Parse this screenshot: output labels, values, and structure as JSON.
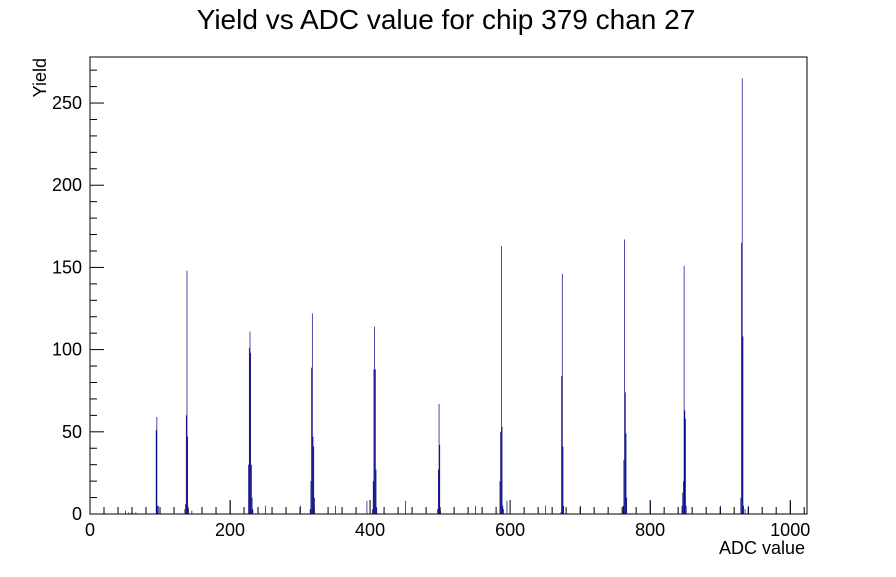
{
  "chart_data": {
    "type": "bar",
    "title": "Yield vs ADC value for chip 379 chan 27",
    "xlabel": "ADC value",
    "ylabel": "Yield",
    "xlim": [
      0,
      1024
    ],
    "ylim": [
      0,
      278
    ],
    "x_ticks": [
      0,
      200,
      400,
      600,
      800,
      1000
    ],
    "y_ticks": [
      0,
      50,
      100,
      150,
      200,
      250
    ],
    "grid": false,
    "legend": "none",
    "series_color": "#000080",
    "bins": [
      [
        50,
        2
      ],
      [
        55,
        1
      ],
      [
        60,
        1
      ],
      [
        65,
        1
      ],
      [
        94,
        51
      ],
      [
        95,
        59
      ],
      [
        96,
        5
      ],
      [
        97,
        5
      ],
      [
        135,
        3
      ],
      [
        136,
        6
      ],
      [
        137,
        60
      ],
      [
        138,
        148
      ],
      [
        139,
        47
      ],
      [
        140,
        3
      ],
      [
        145,
        2
      ],
      [
        200,
        8
      ],
      [
        226,
        30
      ],
      [
        227,
        101
      ],
      [
        228,
        111
      ],
      [
        229,
        98
      ],
      [
        230,
        30
      ],
      [
        231,
        10
      ],
      [
        232,
        3
      ],
      [
        250,
        5
      ],
      [
        300,
        5
      ],
      [
        314,
        3
      ],
      [
        315,
        20
      ],
      [
        316,
        89
      ],
      [
        317,
        122
      ],
      [
        318,
        47
      ],
      [
        319,
        41
      ],
      [
        320,
        10
      ],
      [
        350,
        5
      ],
      [
        395,
        8
      ],
      [
        403,
        3
      ],
      [
        404,
        20
      ],
      [
        405,
        88
      ],
      [
        406,
        114
      ],
      [
        407,
        88
      ],
      [
        408,
        27
      ],
      [
        409,
        4
      ],
      [
        450,
        8
      ],
      [
        496,
        3
      ],
      [
        497,
        27
      ],
      [
        498,
        67
      ],
      [
        499,
        42
      ],
      [
        500,
        2
      ],
      [
        550,
        5
      ],
      [
        585,
        20
      ],
      [
        586,
        50
      ],
      [
        587,
        163
      ],
      [
        588,
        53
      ],
      [
        589,
        5
      ],
      [
        590,
        3
      ],
      [
        595,
        8
      ],
      [
        650,
        5
      ],
      [
        672,
        1
      ],
      [
        673,
        84
      ],
      [
        674,
        146
      ],
      [
        675,
        41
      ],
      [
        676,
        5
      ],
      [
        700,
        5
      ],
      [
        761,
        5
      ],
      [
        762,
        33
      ],
      [
        763,
        167
      ],
      [
        764,
        74
      ],
      [
        765,
        49
      ],
      [
        766,
        10
      ],
      [
        800,
        8
      ],
      [
        845,
        5
      ],
      [
        846,
        13
      ],
      [
        847,
        20
      ],
      [
        848,
        151
      ],
      [
        849,
        63
      ],
      [
        850,
        58
      ],
      [
        851,
        5
      ],
      [
        900,
        5
      ],
      [
        929,
        10
      ],
      [
        930,
        165
      ],
      [
        931,
        265
      ],
      [
        932,
        108
      ],
      [
        933,
        5
      ],
      [
        935,
        3
      ],
      [
        940,
        5
      ],
      [
        1000,
        8
      ]
    ]
  }
}
